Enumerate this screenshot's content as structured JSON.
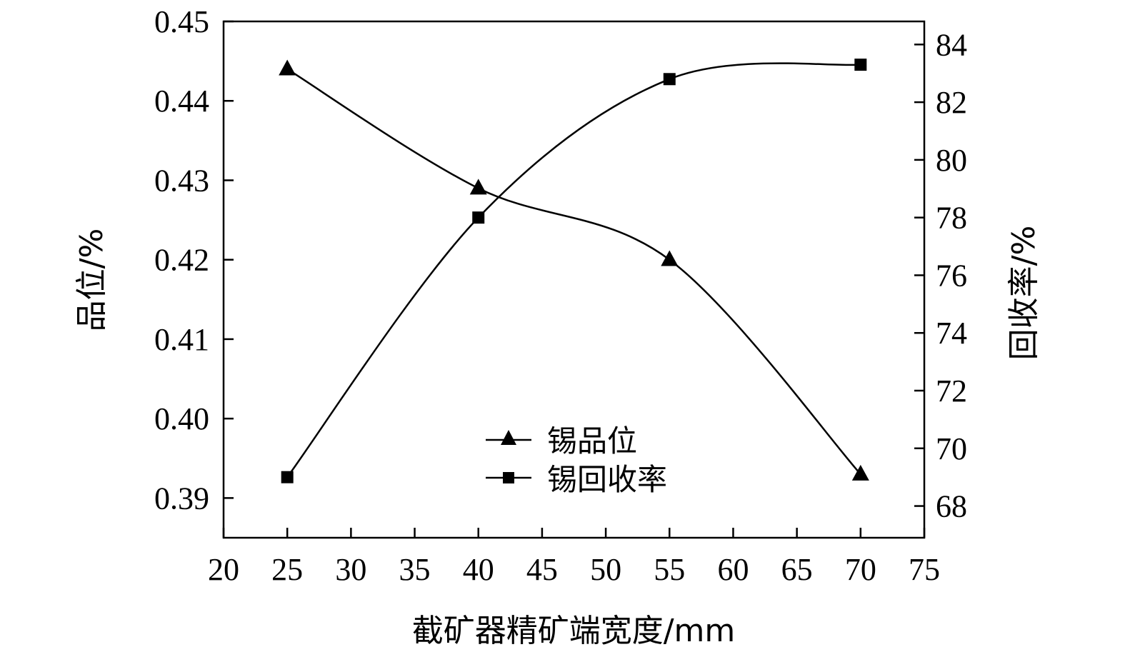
{
  "chart_data": {
    "type": "line",
    "xlabel": "截矿器精矿端宽度/mm",
    "ylabel_left": "品位/%",
    "ylabel_right": "回收率/%",
    "xlim": [
      20,
      75
    ],
    "xticks": [
      20,
      25,
      30,
      35,
      40,
      45,
      50,
      55,
      60,
      65,
      70,
      75
    ],
    "ylim_left": [
      0.385,
      0.45
    ],
    "yticks_left": [
      "0.39",
      "0.40",
      "0.41",
      "0.42",
      "0.43",
      "0.44",
      "0.45"
    ],
    "ylim_right": [
      66.9,
      84.8
    ],
    "yticks_right": [
      "68",
      "70",
      "72",
      "74",
      "76",
      "78",
      "80",
      "82",
      "84"
    ],
    "grid": false,
    "legend_position": "bottom-center",
    "series": [
      {
        "name": "锡品位",
        "axis": "left",
        "marker": "triangle",
        "x": [
          25,
          40,
          55,
          70
        ],
        "values": [
          0.444,
          0.429,
          0.42,
          0.393
        ]
      },
      {
        "name": "锡回收率",
        "axis": "right",
        "marker": "square",
        "x": [
          25,
          40,
          55,
          70
        ],
        "values": [
          69.0,
          78.0,
          82.8,
          83.3
        ]
      }
    ]
  }
}
